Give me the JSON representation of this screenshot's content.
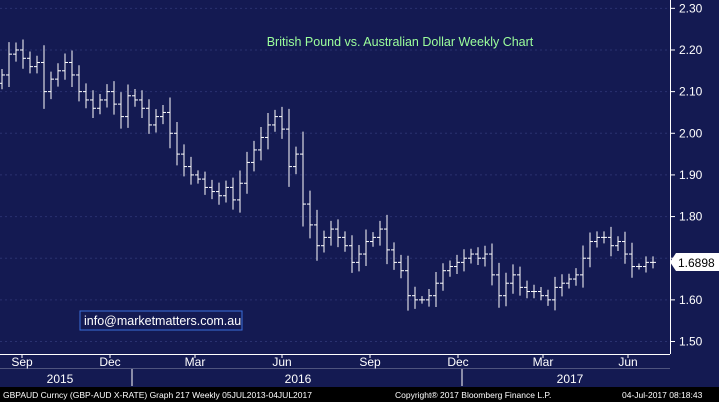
{
  "chart_data": {
    "type": "ohlc",
    "title": "British Pound vs. Australian Dollar Weekly Chart",
    "ylim": [
      1.47,
      2.32
    ],
    "y_ticks": [
      "2.30",
      "2.20",
      "2.10",
      "2.00",
      "1.90",
      "1.80",
      "1.70",
      "1.60",
      "1.50"
    ],
    "x_month_labels": [
      "Sep",
      "Dec",
      "Mar",
      "Jun",
      "Sep",
      "Dec",
      "Mar",
      "Jun"
    ],
    "x_year_labels": [
      "2015",
      "2016",
      "2017"
    ],
    "last_value": "1.6898",
    "series": [
      {
        "ticker": "GBPAUD Curncy (GBP-AUD X-RATE)",
        "frequency": "Weekly",
        "close": [
          2.14,
          2.19,
          2.2,
          2.18,
          2.16,
          2.17,
          2.1,
          2.13,
          2.15,
          2.17,
          2.14,
          2.1,
          2.08,
          2.06,
          2.08,
          2.1,
          2.07,
          2.04,
          2.09,
          2.08,
          2.06,
          2.02,
          2.04,
          2.05,
          2.0,
          1.95,
          1.92,
          1.9,
          1.89,
          1.87,
          1.86,
          1.85,
          1.87,
          1.84,
          1.88,
          1.93,
          1.96,
          1.99,
          2.02,
          2.04,
          2.01,
          1.92,
          1.95,
          1.83,
          1.78,
          1.73,
          1.75,
          1.77,
          1.75,
          1.73,
          1.69,
          1.71,
          1.74,
          1.75,
          1.77,
          1.72,
          1.69,
          1.67,
          1.61,
          1.6,
          1.6,
          1.61,
          1.64,
          1.67,
          1.68,
          1.69,
          1.7,
          1.71,
          1.7,
          1.71,
          1.66,
          1.61,
          1.64,
          1.66,
          1.63,
          1.62,
          1.62,
          1.61,
          1.6,
          1.63,
          1.64,
          1.65,
          1.66,
          1.7,
          1.74,
          1.75,
          1.75,
          1.73,
          1.74,
          1.71,
          1.68,
          1.68,
          1.69,
          1.69
        ]
      }
    ],
    "date_range": "05JUL2013-04JUL2017"
  },
  "text_box": {
    "label": "info@marketmatters.com.au"
  },
  "footer": {
    "left": "GBPAUD Curncy (GBP-AUD X-RATE) Graph 217  Weekly 05JUL2013-04JUL2017",
    "center": "Copyright® 2017 Bloomberg Finance L.P.",
    "right": "04-Jul-2017 08:18:43"
  },
  "colors": {
    "plot_background": "#141a52",
    "page_background": "#000000",
    "price_line": "#ffffff",
    "title": "#9cff9c",
    "last_box": "#ffffff",
    "text_box_border": "#3a6ddb"
  }
}
